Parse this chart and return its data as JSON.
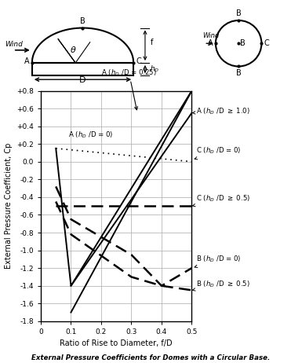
{
  "title": "External Pressure Coefficients for Domes with a Circular Base.",
  "xlabel": "Ratio of Rise to Diameter, f/D",
  "ylabel": "External Pressure Coefficient, Cp",
  "xlim": [
    0,
    0.5
  ],
  "ylim": [
    -1.8,
    0.8
  ],
  "xticks": [
    0,
    0.1,
    0.2,
    0.3,
    0.4,
    0.5
  ],
  "yticks": [
    -1.8,
    -1.6,
    -1.4,
    -1.2,
    -1.0,
    -0.8,
    -0.6,
    -0.4,
    -0.2,
    0.0,
    0.2,
    0.4,
    0.6,
    0.8
  ],
  "ytick_labels": [
    "-1.8",
    "-1.6",
    "-1.4",
    "-1.2",
    "-1.0",
    "-0.8",
    "-0.6",
    "-0.4",
    "-0.2",
    "0.0",
    "+0.2",
    "+0.4",
    "+0.6",
    "+0.8"
  ],
  "lines": {
    "A_hD0": {
      "x": [
        0.05,
        0.1,
        0.5
      ],
      "y": [
        0.15,
        -1.4,
        0.8
      ],
      "ls": "-",
      "lw": 1.4
    },
    "A_hD025": {
      "x": [
        0.1,
        0.5
      ],
      "y": [
        -1.7,
        0.8
      ],
      "ls": "-",
      "lw": 1.4
    },
    "A_hD10": {
      "x": [
        0.1,
        0.5
      ],
      "y": [
        -1.4,
        0.55
      ],
      "ls": "-",
      "lw": 1.4
    },
    "C_hD0": {
      "x": [
        0.05,
        0.5
      ],
      "y": [
        0.15,
        0.0
      ],
      "ls": "dotted",
      "lw": 1.2
    },
    "C_hD05": {
      "x": [
        0.05,
        0.5
      ],
      "y": [
        -0.5,
        -0.5
      ],
      "ls": "--",
      "lw": 1.8
    },
    "B_hD0": {
      "x": [
        0.05,
        0.1,
        0.3,
        0.4,
        0.5
      ],
      "y": [
        -0.28,
        -0.65,
        -1.05,
        -1.4,
        -1.2
      ],
      "ls": "--",
      "lw": 1.8
    },
    "B_hD05": {
      "x": [
        0.05,
        0.1,
        0.3,
        0.4,
        0.5
      ],
      "y": [
        -0.45,
        -0.82,
        -1.3,
        -1.4,
        -1.45
      ],
      "ls": "--",
      "lw": 1.8
    }
  },
  "bg_color": "#ffffff"
}
